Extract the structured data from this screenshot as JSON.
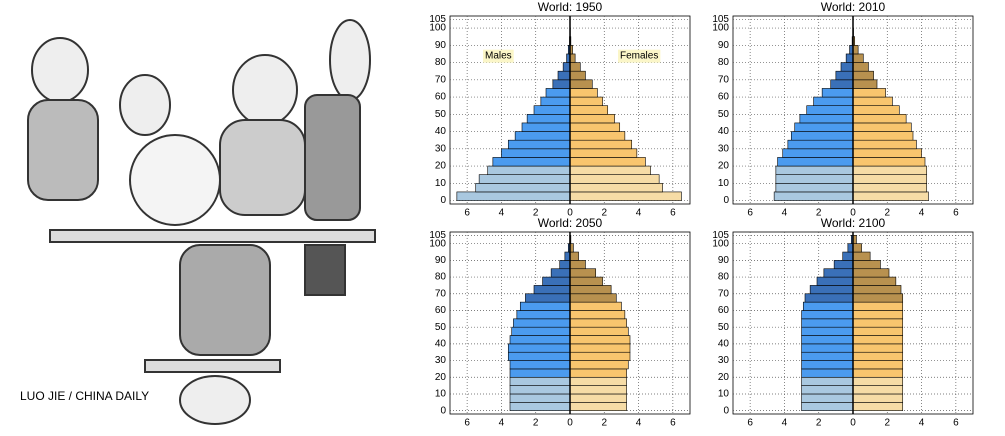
{
  "cartoon": {
    "credit": "LUO JIE / CHINA DAILY"
  },
  "chart_data": [
    {
      "type": "pyramid",
      "title": "World: 1950",
      "annotations": [
        "Males",
        "Females"
      ],
      "categories": [
        0,
        5,
        10,
        15,
        20,
        25,
        30,
        35,
        40,
        45,
        50,
        55,
        60,
        65,
        70,
        75,
        80,
        85,
        90,
        95,
        100
      ],
      "xlim": [
        -7,
        7
      ],
      "ylim": [
        -2,
        107
      ],
      "xticks": [
        {
          "value": -6,
          "label": "6"
        },
        {
          "value": -4,
          "label": "4"
        },
        {
          "value": -2,
          "label": "2"
        },
        0,
        2,
        4,
        6
      ],
      "yticks": [
        0,
        10,
        20,
        30,
        40,
        50,
        60,
        70,
        80,
        90,
        100,
        105
      ],
      "grid": true,
      "series": [
        {
          "name": "Males",
          "colors": [
            "#a9c8e0",
            "#a9c8e0",
            "#a9c8e0",
            "#a9c8e0",
            "#4b9bef",
            "#4b9bef",
            "#4b9bef",
            "#4b9bef",
            "#4b9bef",
            "#4b9bef",
            "#4b9bef",
            "#4b9bef",
            "#4b9bef",
            "#3a70b8",
            "#3a70b8",
            "#3a70b8",
            "#3a70b8",
            "#3a70b8",
            "#3a70b8",
            "#3a70b8",
            "#3a70b8"
          ],
          "values": [
            -6.6,
            -5.5,
            -5.3,
            -4.8,
            -4.5,
            -4.0,
            -3.6,
            -3.2,
            -2.8,
            -2.5,
            -2.1,
            -1.7,
            -1.4,
            -1.0,
            -0.7,
            -0.4,
            -0.2,
            -0.1,
            -0.03,
            -0.01,
            -0.001
          ]
        },
        {
          "name": "Females",
          "colors": [
            "#f6dca6",
            "#f6dca6",
            "#f6dca6",
            "#f6dca6",
            "#f8c56e",
            "#f8c56e",
            "#f8c56e",
            "#f8c56e",
            "#f8c56e",
            "#f8c56e",
            "#f8c56e",
            "#f8c56e",
            "#f8c56e",
            "#b8914f",
            "#b8914f",
            "#b8914f",
            "#b8914f",
            "#b8914f",
            "#b8914f",
            "#b8914f",
            "#b8914f"
          ],
          "values": [
            6.5,
            5.4,
            5.2,
            4.7,
            4.4,
            3.9,
            3.6,
            3.2,
            2.9,
            2.6,
            2.2,
            1.9,
            1.6,
            1.3,
            0.9,
            0.6,
            0.3,
            0.15,
            0.05,
            0.02,
            0.003
          ]
        }
      ]
    },
    {
      "type": "pyramid",
      "title": "World: 2010",
      "categories": [
        0,
        5,
        10,
        15,
        20,
        25,
        30,
        35,
        40,
        45,
        50,
        55,
        60,
        65,
        70,
        75,
        80,
        85,
        90,
        95,
        100
      ],
      "xlim": [
        -7,
        7
      ],
      "ylim": [
        -2,
        107
      ],
      "xticks": [
        {
          "value": -6,
          "label": "6"
        },
        {
          "value": -4,
          "label": "4"
        },
        {
          "value": -2,
          "label": "2"
        },
        0,
        2,
        4,
        6
      ],
      "yticks": [
        0,
        10,
        20,
        30,
        40,
        50,
        60,
        70,
        80,
        90,
        100,
        105
      ],
      "grid": true,
      "series": [
        {
          "name": "Males",
          "colors": [
            "#a9c8e0",
            "#a9c8e0",
            "#a9c8e0",
            "#a9c8e0",
            "#4b9bef",
            "#4b9bef",
            "#4b9bef",
            "#4b9bef",
            "#4b9bef",
            "#4b9bef",
            "#4b9bef",
            "#4b9bef",
            "#4b9bef",
            "#3a70b8",
            "#3a70b8",
            "#3a70b8",
            "#3a70b8",
            "#3a70b8",
            "#3a70b8",
            "#3a70b8",
            "#3a70b8"
          ],
          "values": [
            -4.6,
            -4.5,
            -4.5,
            -4.5,
            -4.4,
            -4.1,
            -3.8,
            -3.6,
            -3.4,
            -3.1,
            -2.7,
            -2.3,
            -1.8,
            -1.3,
            -1.0,
            -0.7,
            -0.4,
            -0.2,
            -0.05,
            -0.01,
            -0.001
          ]
        },
        {
          "name": "Females",
          "colors": [
            "#f6dca6",
            "#f6dca6",
            "#f6dca6",
            "#f6dca6",
            "#f8c56e",
            "#f8c56e",
            "#f8c56e",
            "#f8c56e",
            "#f8c56e",
            "#f8c56e",
            "#f8c56e",
            "#f8c56e",
            "#f8c56e",
            "#b8914f",
            "#b8914f",
            "#b8914f",
            "#b8914f",
            "#b8914f",
            "#b8914f",
            "#b8914f",
            "#b8914f"
          ],
          "values": [
            4.4,
            4.3,
            4.3,
            4.3,
            4.2,
            4.0,
            3.7,
            3.5,
            3.4,
            3.1,
            2.7,
            2.3,
            1.9,
            1.4,
            1.2,
            0.9,
            0.6,
            0.3,
            0.1,
            0.03,
            0.005
          ]
        }
      ]
    },
    {
      "type": "pyramid",
      "title": "World: 2050",
      "categories": [
        0,
        5,
        10,
        15,
        20,
        25,
        30,
        35,
        40,
        45,
        50,
        55,
        60,
        65,
        70,
        75,
        80,
        85,
        90,
        95,
        100
      ],
      "xlim": [
        -7,
        7
      ],
      "ylim": [
        -2,
        107
      ],
      "xticks": [
        {
          "value": -6,
          "label": "6"
        },
        {
          "value": -4,
          "label": "4"
        },
        {
          "value": -2,
          "label": "2"
        },
        0,
        2,
        4,
        6
      ],
      "yticks": [
        0,
        10,
        20,
        30,
        40,
        50,
        60,
        70,
        80,
        90,
        100,
        105
      ],
      "grid": true,
      "series": [
        {
          "name": "Males",
          "colors": [
            "#a9c8e0",
            "#a9c8e0",
            "#a9c8e0",
            "#a9c8e0",
            "#4b9bef",
            "#4b9bef",
            "#4b9bef",
            "#4b9bef",
            "#4b9bef",
            "#4b9bef",
            "#4b9bef",
            "#4b9bef",
            "#4b9bef",
            "#3a70b8",
            "#3a70b8",
            "#3a70b8",
            "#3a70b8",
            "#3a70b8",
            "#3a70b8",
            "#3a70b8",
            "#3a70b8"
          ],
          "values": [
            -3.5,
            -3.5,
            -3.5,
            -3.5,
            -3.5,
            -3.5,
            -3.6,
            -3.6,
            -3.5,
            -3.4,
            -3.3,
            -3.1,
            -2.9,
            -2.6,
            -2.1,
            -1.6,
            -1.1,
            -0.6,
            -0.3,
            -0.1,
            -0.02
          ]
        },
        {
          "name": "Females",
          "colors": [
            "#f6dca6",
            "#f6dca6",
            "#f6dca6",
            "#f6dca6",
            "#f8c56e",
            "#f8c56e",
            "#f8c56e",
            "#f8c56e",
            "#f8c56e",
            "#f8c56e",
            "#f8c56e",
            "#f8c56e",
            "#f8c56e",
            "#b8914f",
            "#b8914f",
            "#b8914f",
            "#b8914f",
            "#b8914f",
            "#b8914f",
            "#b8914f",
            "#b8914f"
          ],
          "values": [
            3.3,
            3.3,
            3.3,
            3.3,
            3.3,
            3.4,
            3.5,
            3.5,
            3.5,
            3.4,
            3.3,
            3.2,
            3.0,
            2.7,
            2.4,
            1.9,
            1.5,
            0.9,
            0.5,
            0.2,
            0.05
          ]
        }
      ]
    },
    {
      "type": "pyramid",
      "title": "World: 2100",
      "categories": [
        0,
        5,
        10,
        15,
        20,
        25,
        30,
        35,
        40,
        45,
        50,
        55,
        60,
        65,
        70,
        75,
        80,
        85,
        90,
        95,
        100
      ],
      "xlim": [
        -7,
        7
      ],
      "ylim": [
        -2,
        107
      ],
      "xticks": [
        {
          "value": -6,
          "label": "6"
        },
        {
          "value": -4,
          "label": "4"
        },
        {
          "value": -2,
          "label": "2"
        },
        0,
        2,
        4,
        6
      ],
      "yticks": [
        0,
        10,
        20,
        30,
        40,
        50,
        60,
        70,
        80,
        90,
        100,
        105
      ],
      "grid": true,
      "series": [
        {
          "name": "Males",
          "colors": [
            "#a9c8e0",
            "#a9c8e0",
            "#a9c8e0",
            "#a9c8e0",
            "#4b9bef",
            "#4b9bef",
            "#4b9bef",
            "#4b9bef",
            "#4b9bef",
            "#4b9bef",
            "#4b9bef",
            "#4b9bef",
            "#4b9bef",
            "#3a70b8",
            "#3a70b8",
            "#3a70b8",
            "#3a70b8",
            "#3a70b8",
            "#3a70b8",
            "#3a70b8",
            "#3a70b8"
          ],
          "values": [
            -3.0,
            -3.0,
            -3.0,
            -3.0,
            -3.0,
            -3.0,
            -3.0,
            -3.0,
            -3.0,
            -3.0,
            -3.0,
            -3.0,
            -2.9,
            -2.8,
            -2.5,
            -2.1,
            -1.7,
            -1.1,
            -0.6,
            -0.3,
            -0.1
          ]
        },
        {
          "name": "Females",
          "colors": [
            "#f6dca6",
            "#f6dca6",
            "#f6dca6",
            "#f6dca6",
            "#f8c56e",
            "#f8c56e",
            "#f8c56e",
            "#f8c56e",
            "#f8c56e",
            "#f8c56e",
            "#f8c56e",
            "#f8c56e",
            "#f8c56e",
            "#b8914f",
            "#b8914f",
            "#b8914f",
            "#b8914f",
            "#b8914f",
            "#b8914f",
            "#b8914f",
            "#b8914f"
          ],
          "values": [
            2.9,
            2.9,
            2.9,
            2.9,
            2.9,
            2.9,
            2.9,
            2.9,
            2.9,
            2.9,
            2.9,
            2.9,
            2.9,
            2.9,
            2.8,
            2.5,
            2.1,
            1.6,
            1.0,
            0.5,
            0.2
          ]
        }
      ]
    }
  ]
}
